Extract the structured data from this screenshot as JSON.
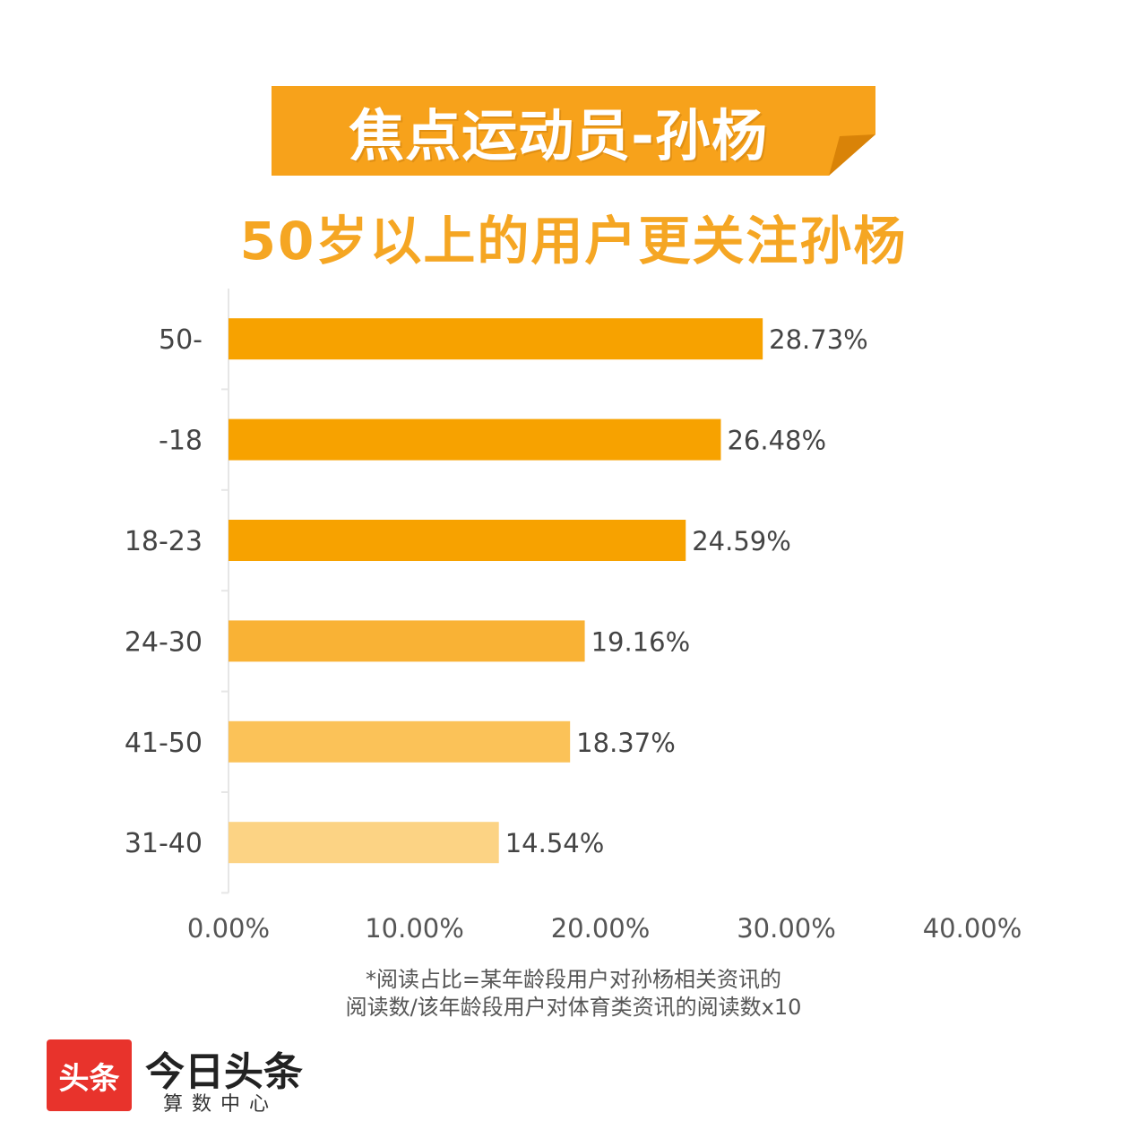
{
  "header": {
    "banner_title": "焦点运动员-孙杨",
    "subtitle": "50岁以上的用户更关注孙杨",
    "banner_color": "#f7a21b",
    "banner_fold_color": "#e08a0b"
  },
  "chart_data": {
    "type": "bar",
    "orientation": "horizontal",
    "categories": [
      "50-",
      "-18",
      "18-23",
      "24-30",
      "41-50",
      "31-40"
    ],
    "values": [
      28.73,
      26.48,
      24.59,
      19.16,
      18.37,
      14.54
    ],
    "value_labels": [
      "28.73%",
      "26.48%",
      "24.59%",
      "19.16%",
      "18.37%",
      "14.54%"
    ],
    "bar_colors": [
      "#f7a200",
      "#f7a200",
      "#f7a200",
      "#f9b235",
      "#fbc258",
      "#fcd384"
    ],
    "xlim": [
      0,
      40
    ],
    "xticks": [
      "0.00%",
      "10.00%",
      "20.00%",
      "30.00%",
      "40.00%"
    ],
    "grid": false,
    "legend": "none"
  },
  "note": {
    "line1": "*阅读占比=某年龄段用户对孙杨相关资讯的",
    "line2": "阅读数/该年龄段用户对体育类资讯的阅读数x10"
  },
  "logo": {
    "box_text": "头条",
    "name": "今日头条",
    "sub": "算数中心",
    "box_color": "#e8332c"
  }
}
